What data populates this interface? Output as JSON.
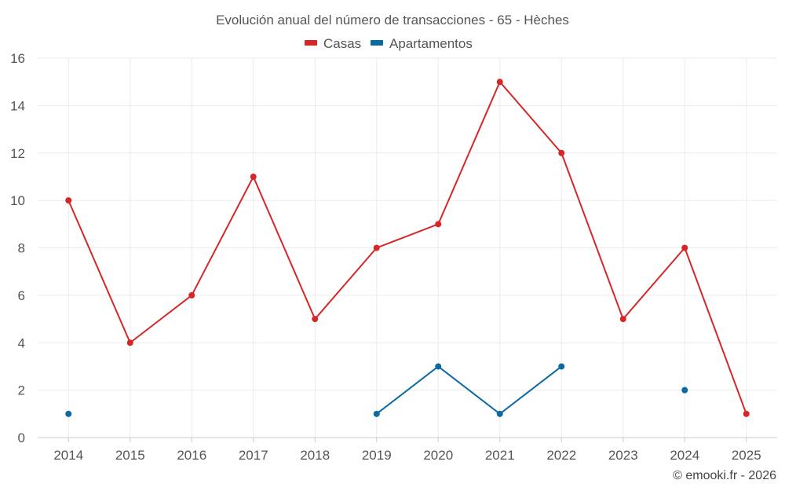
{
  "chart_data": {
    "type": "line",
    "title": "Evolución anual del número de transacciones - 65 - Hèches",
    "categories": [
      "2014",
      "2015",
      "2016",
      "2017",
      "2018",
      "2019",
      "2020",
      "2021",
      "2022",
      "2023",
      "2024",
      "2025"
    ],
    "series": [
      {
        "name": "Casas",
        "color": "#d62728",
        "values": [
          10,
          4,
          6,
          11,
          5,
          8,
          9,
          15,
          12,
          5,
          8,
          1
        ]
      },
      {
        "name": "Apartamentos",
        "color": "#0a6aa1",
        "values": [
          1,
          null,
          null,
          null,
          null,
          1,
          3,
          1,
          3,
          null,
          2,
          null
        ]
      }
    ],
    "ylim": [
      0,
      16
    ],
    "yticks": [
      "0",
      "2",
      "4",
      "6",
      "8",
      "10",
      "12",
      "14",
      "16"
    ],
    "xlabel": "",
    "ylabel": "",
    "grid": true,
    "legend_position": "top-center",
    "credit": "© emooki.fr - 2026"
  }
}
